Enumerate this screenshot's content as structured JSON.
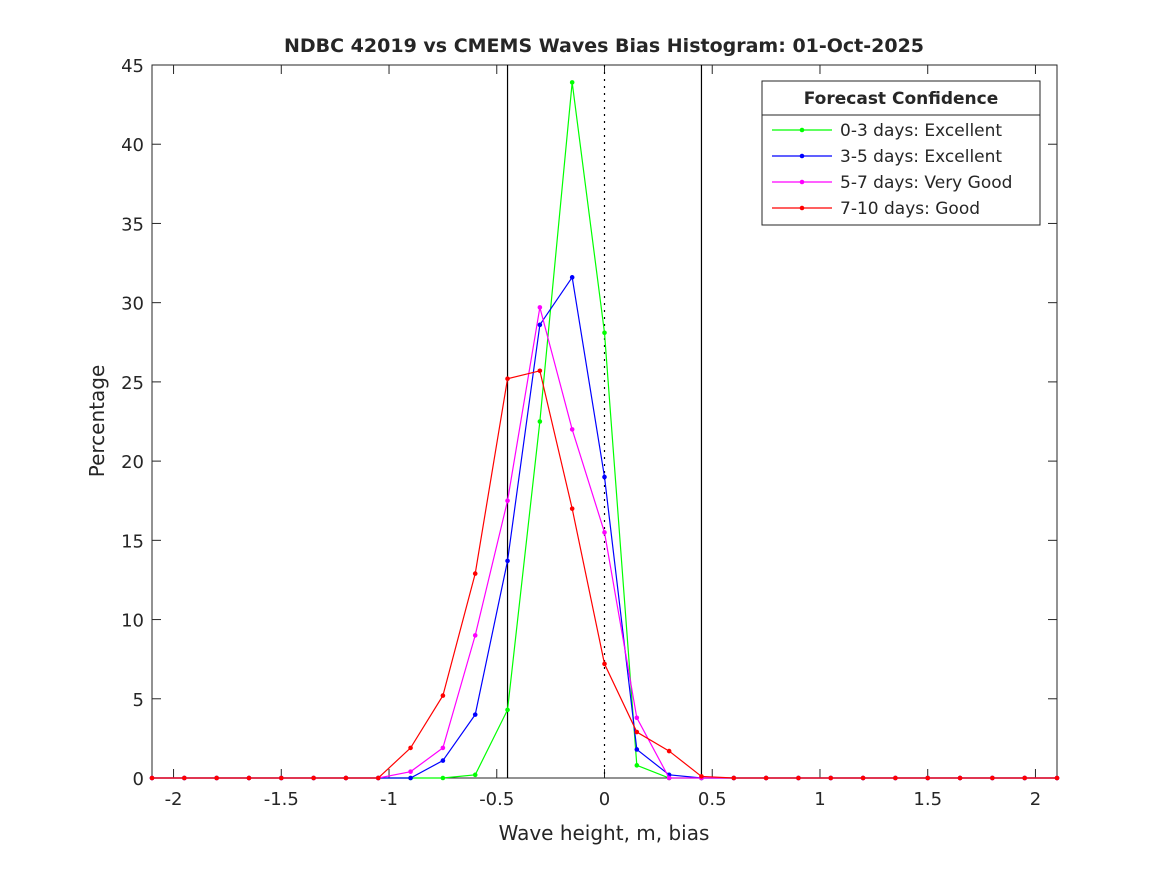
{
  "chart_data": {
    "type": "line",
    "title": "NDBC 42019 vs CMEMS Waves Bias Histogram: 01-Oct-2025",
    "xlabel": "Wave height, m, bias",
    "ylabel": "Percentage",
    "xlim": [
      -2.1,
      2.1
    ],
    "ylim": [
      0,
      45
    ],
    "xticks": [
      -2,
      -1.5,
      -1,
      -0.5,
      0,
      0.5,
      1,
      1.5,
      2
    ],
    "xtick_labels": [
      "-2",
      "-1.5",
      "-1",
      "-0.5",
      "0",
      "0.5",
      "1",
      "1.5",
      "2"
    ],
    "yticks": [
      0,
      5,
      10,
      15,
      20,
      25,
      30,
      35,
      40,
      45
    ],
    "ytick_labels": [
      "0",
      "5",
      "10",
      "15",
      "20",
      "25",
      "30",
      "35",
      "40",
      "45"
    ],
    "vlines": [
      {
        "x": -0.45,
        "style": "solid"
      },
      {
        "x": 0,
        "style": "dotted"
      },
      {
        "x": 0.45,
        "style": "solid"
      }
    ],
    "x": [
      -2.1,
      -1.95,
      -1.8,
      -1.65,
      -1.5,
      -1.35,
      -1.2,
      -1.05,
      -0.9,
      -0.75,
      -0.6,
      -0.45,
      -0.3,
      -0.15,
      0,
      0.15,
      0.3,
      0.45,
      0.6,
      0.75,
      0.9,
      1.05,
      1.2,
      1.35,
      1.5,
      1.65,
      1.8,
      1.95,
      2.1
    ],
    "legend_title": "Forecast Confidence",
    "legend_position": "top-right",
    "series": [
      {
        "name": "0-3 days: Excellent",
        "color": "#00ff00",
        "values": [
          0,
          0,
          0,
          0,
          0,
          0,
          0,
          0,
          0,
          0,
          0.2,
          4.3,
          22.5,
          43.9,
          28.1,
          0.8,
          0,
          0,
          0,
          0,
          0,
          0,
          0,
          0,
          0,
          0,
          0,
          0,
          0
        ]
      },
      {
        "name": "3-5 days: Excellent",
        "color": "#0000ff",
        "values": [
          0,
          0,
          0,
          0,
          0,
          0,
          0,
          0,
          0,
          1.1,
          4.0,
          13.7,
          28.6,
          31.6,
          19.0,
          1.8,
          0.2,
          0,
          0,
          0,
          0,
          0,
          0,
          0,
          0,
          0,
          0,
          0,
          0
        ]
      },
      {
        "name": "5-7 days: Very Good",
        "color": "#ff00ff",
        "values": [
          0,
          0,
          0,
          0,
          0,
          0,
          0,
          0,
          0.4,
          1.9,
          9.0,
          17.5,
          29.7,
          22.0,
          15.5,
          3.8,
          0,
          0,
          0,
          0,
          0,
          0,
          0,
          0,
          0,
          0,
          0,
          0,
          0
        ]
      },
      {
        "name": "7-10 days: Good",
        "color": "#ff0000",
        "values": [
          0,
          0,
          0,
          0,
          0,
          0,
          0,
          0,
          1.9,
          5.2,
          12.9,
          25.2,
          25.7,
          17.0,
          7.2,
          2.9,
          1.7,
          0.1,
          0,
          0,
          0,
          0,
          0,
          0,
          0,
          0,
          0,
          0,
          0
        ]
      }
    ]
  }
}
